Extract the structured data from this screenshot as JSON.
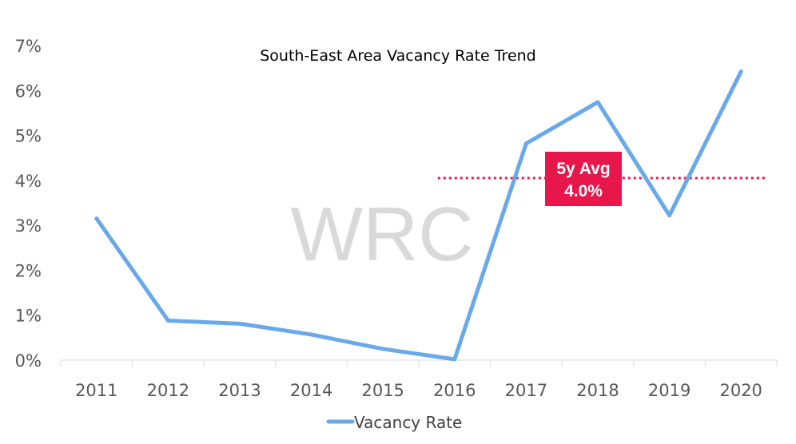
{
  "chart_data": {
    "type": "line",
    "title": "South-East Area Vacancy Rate Trend",
    "categories": [
      "2011",
      "2012",
      "2013",
      "2014",
      "2015",
      "2016",
      "2017",
      "2018",
      "2019",
      "2020"
    ],
    "series": [
      {
        "name": "Vacancy Rate",
        "values": [
          3.15,
          0.88,
          0.81,
          0.57,
          0.25,
          0.02,
          4.82,
          5.74,
          3.22,
          6.42
        ],
        "color": "#6aa9e9"
      }
    ],
    "ylim": [
      0,
      7
    ],
    "yticks": [
      0,
      1,
      2,
      3,
      4,
      5,
      6,
      7
    ],
    "ytick_labels": [
      "0%",
      "1%",
      "2%",
      "3%",
      "4%",
      "5%",
      "6%",
      "7%"
    ],
    "reference_line": {
      "value": 4.05,
      "x_start": "2016",
      "x_end": "2020",
      "color": "#e8174b",
      "label_line1": "5y Avg",
      "label_line2": "4.0%"
    },
    "watermark": "WRC",
    "legend_position": "bottom"
  }
}
